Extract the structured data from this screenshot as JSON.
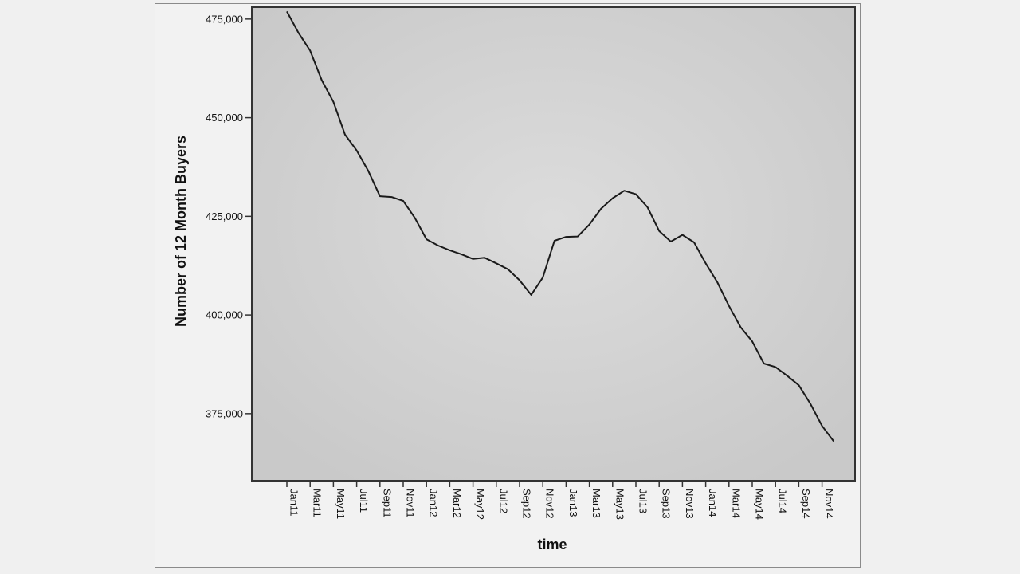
{
  "chart_data": {
    "type": "line",
    "title": "",
    "xlabel": "time",
    "ylabel": "Number of 12 Month Buyers",
    "ylim": [
      358000,
      478000
    ],
    "y_ticks": [
      375000,
      400000,
      425000,
      450000,
      475000
    ],
    "y_tick_labels": [
      "375,000",
      "400,000",
      "425,000",
      "450,000",
      "475,000"
    ],
    "x_tick_labels": [
      "Jan11",
      "Mar11",
      "May11",
      "Jul11",
      "Sep11",
      "Nov11",
      "Jan12",
      "Mar12",
      "May12",
      "Jul12",
      "Sep12",
      "Nov12",
      "Jan13",
      "Mar13",
      "May13",
      "Jul13",
      "Sep13",
      "Nov13",
      "Jan14",
      "Mar14",
      "May14",
      "Jul14",
      "Sep14",
      "Nov14"
    ],
    "x": [
      "Jan11",
      "Feb11",
      "Mar11",
      "Apr11",
      "May11",
      "Jun11",
      "Jul11",
      "Aug11",
      "Sep11",
      "Oct11",
      "Nov11",
      "Dec11",
      "Jan12",
      "Feb12",
      "Mar12",
      "Apr12",
      "May12",
      "Jun12",
      "Jul12",
      "Aug12",
      "Sep12",
      "Oct12",
      "Nov12",
      "Dec12",
      "Jan13",
      "Feb13",
      "Mar13",
      "Apr13",
      "May13",
      "Jun13",
      "Jul13",
      "Aug13",
      "Sep13",
      "Oct13",
      "Nov13",
      "Dec13",
      "Jan14",
      "Feb14",
      "Mar14",
      "Apr14",
      "May14",
      "Jun14",
      "Jul14",
      "Aug14",
      "Sep14",
      "Oct14",
      "Nov14",
      "Dec14"
    ],
    "series": [
      {
        "values": [
          476900,
          471500,
          467000,
          459500,
          454000,
          445700,
          441700,
          436500,
          430100,
          429900,
          428900,
          424600,
          419200,
          417600,
          416400,
          415400,
          414200,
          414500,
          413100,
          411600,
          408800,
          405100,
          409500,
          418800,
          419800,
          419900,
          422900,
          426900,
          429600,
          431500,
          430600,
          427300,
          421300,
          418600,
          420300,
          418400,
          413100,
          408300,
          402300,
          396900,
          393300,
          387700,
          386800,
          384600,
          382200,
          377500,
          371900,
          368000
        ]
      }
    ],
    "grid": false,
    "legend": "none",
    "colors": {
      "plot_background": "#d4d4d4",
      "line": "#1a1a1a",
      "axis": "#333333"
    }
  }
}
